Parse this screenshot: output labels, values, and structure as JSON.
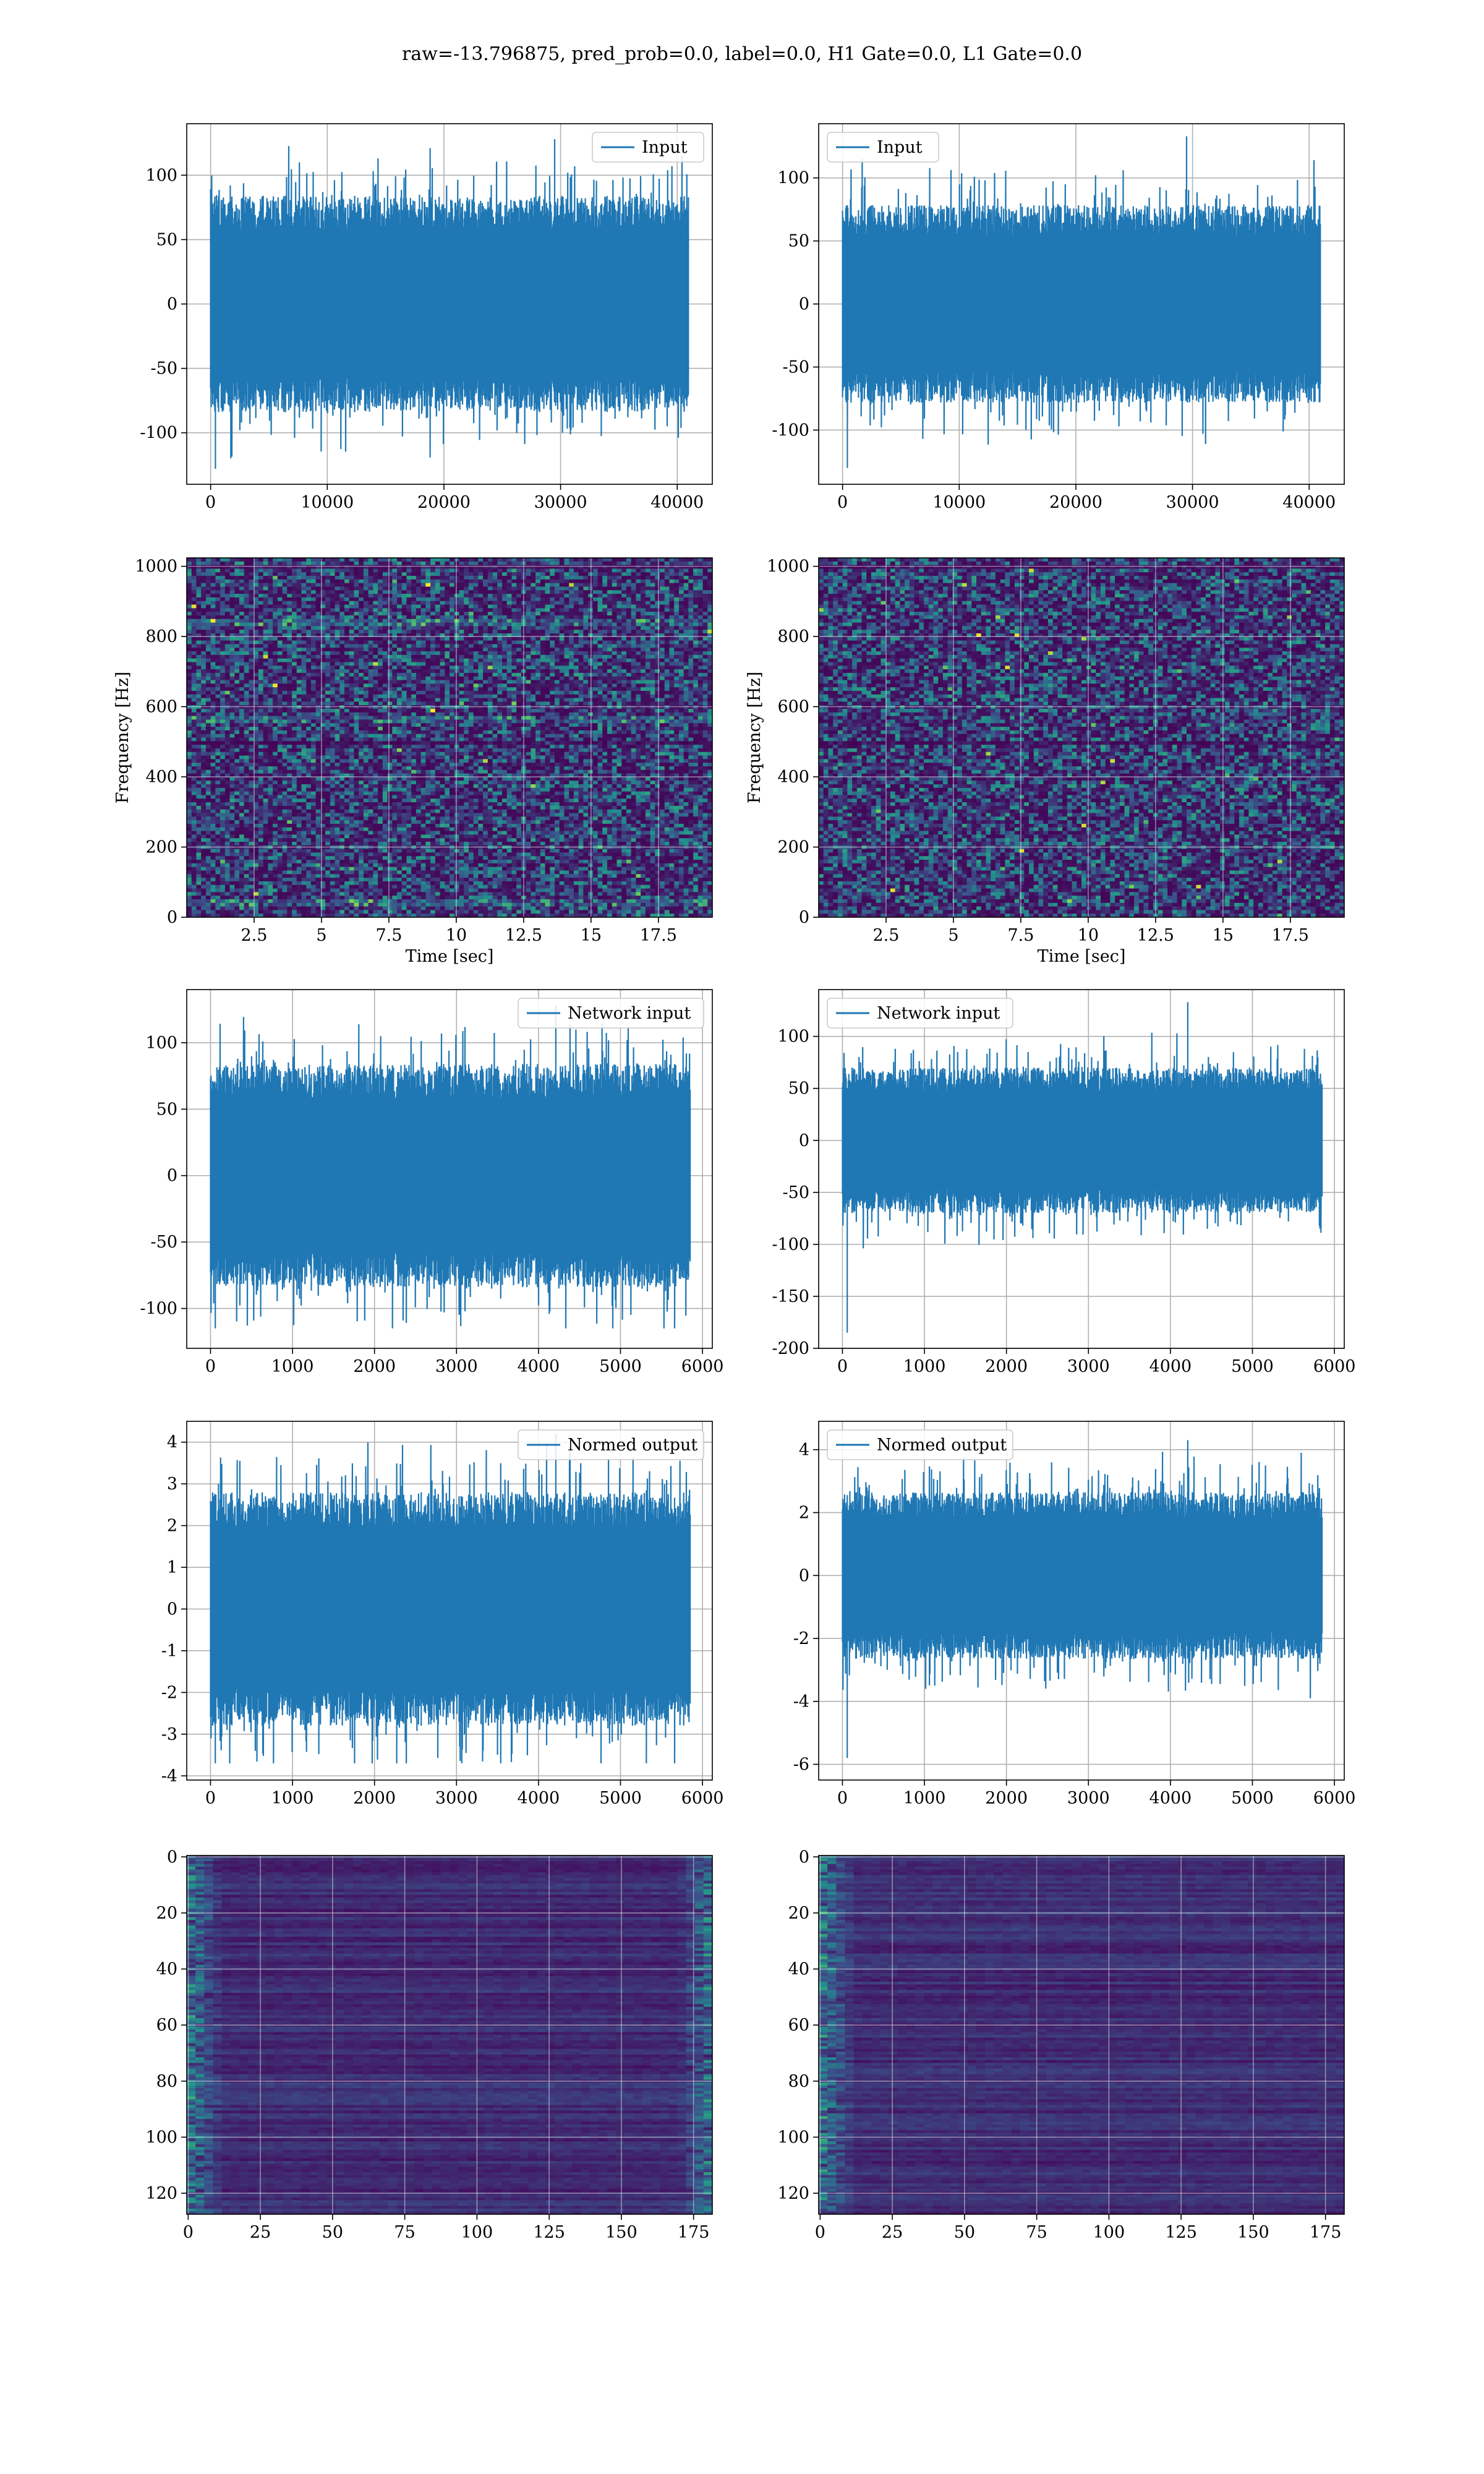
{
  "figure": {
    "title": "raw=-13.796875, pred_prob=0.0, label=0.0, H1 Gate=0.0, L1 Gate=0.0",
    "colors": {
      "line": "#1f77b4",
      "grid": "#b0b0b0"
    }
  },
  "chart_data": [
    {
      "id": "input-h1",
      "type": "line",
      "row": 0,
      "col": 0,
      "signal": "noise",
      "series": [
        {
          "name": "Input",
          "color": "#1f77b4",
          "sample_count": 40960,
          "amplitude_std": 30,
          "peak_max": 128,
          "peak_min": -128
        }
      ],
      "xlim": [
        -2048,
        43008
      ],
      "ylim": [
        -140,
        140
      ],
      "xticks": [
        0,
        10000,
        20000,
        30000,
        40000
      ],
      "yticks": [
        -100,
        -50,
        0,
        50,
        100
      ],
      "grid": true,
      "legend": "upper right"
    },
    {
      "id": "input-l1",
      "type": "line",
      "row": 0,
      "col": 1,
      "signal": "noise",
      "series": [
        {
          "name": "Input",
          "color": "#1f77b4",
          "sample_count": 40960,
          "amplitude_std": 28,
          "peak_max": 133,
          "peak_min": -130
        }
      ],
      "xlim": [
        -2048,
        43008
      ],
      "ylim": [
        -143,
        143
      ],
      "xticks": [
        0,
        10000,
        20000,
        30000,
        40000
      ],
      "yticks": [
        -100,
        -50,
        0,
        50,
        100
      ],
      "grid": true,
      "legend": "upper left"
    },
    {
      "id": "spectrogram-h1",
      "type": "heatmap",
      "row": 1,
      "col": 0,
      "colormap": "viridis",
      "xlim": [
        0,
        19.5
      ],
      "ylim": [
        0,
        1024
      ],
      "xticks": [
        2.5,
        5.0,
        7.5,
        10.0,
        12.5,
        15.0,
        17.5
      ],
      "yticks": [
        0,
        200,
        400,
        600,
        800,
        1000
      ],
      "xlabel": "Time [sec]",
      "ylabel": "Frequency [Hz]",
      "bright_lines_hz": [
        40,
        560,
        840
      ],
      "dark_lines_hz": [
        500,
        1000
      ],
      "grid": true
    },
    {
      "id": "spectrogram-l1",
      "type": "heatmap",
      "row": 1,
      "col": 1,
      "colormap": "viridis",
      "xlim": [
        0,
        19.5
      ],
      "ylim": [
        0,
        1024
      ],
      "xticks": [
        2.5,
        5.0,
        7.5,
        10.0,
        12.5,
        15.0,
        17.5
      ],
      "yticks": [
        0,
        200,
        400,
        600,
        800,
        1000
      ],
      "xlabel": "Time [sec]",
      "ylabel": "Frequency [Hz]",
      "bright_lines_hz": [],
      "dark_lines_hz": [
        500,
        1000
      ],
      "grid": true
    },
    {
      "id": "network-input-h1",
      "type": "line",
      "row": 2,
      "col": 0,
      "signal": "noise",
      "series": [
        {
          "name": "Network input",
          "color": "#1f77b4",
          "sample_count": 5850,
          "amplitude_std": 30,
          "peak_max": 128,
          "peak_min": -115
        }
      ],
      "xlim": [
        -290,
        6120
      ],
      "ylim": [
        -130,
        140
      ],
      "xticks": [
        0,
        1000,
        2000,
        3000,
        4000,
        5000,
        6000
      ],
      "yticks": [
        -100,
        -50,
        0,
        50,
        100
      ],
      "grid": true,
      "legend": "upper right"
    },
    {
      "id": "network-input-l1",
      "type": "line",
      "row": 2,
      "col": 1,
      "signal": "noise",
      "series": [
        {
          "name": "Network input",
          "color": "#1f77b4",
          "sample_count": 5850,
          "amplitude_std": 25,
          "peak_max": 133,
          "peak_min": -185
        }
      ],
      "xlim": [
        -290,
        6120
      ],
      "ylim": [
        -200,
        145
      ],
      "xticks": [
        0,
        1000,
        2000,
        3000,
        4000,
        5000,
        6000
      ],
      "yticks": [
        -200,
        -150,
        -100,
        -50,
        0,
        50,
        100
      ],
      "grid": true,
      "legend": "upper left"
    },
    {
      "id": "normed-output-h1",
      "type": "line",
      "row": 3,
      "col": 0,
      "signal": "noise",
      "series": [
        {
          "name": "Normed output",
          "color": "#1f77b4",
          "sample_count": 5850,
          "amplitude_std": 1.0,
          "peak_max": 4.2,
          "peak_min": -3.7
        }
      ],
      "xlim": [
        -290,
        6120
      ],
      "ylim": [
        -4.1,
        4.5
      ],
      "xticks": [
        0,
        1000,
        2000,
        3000,
        4000,
        5000,
        6000
      ],
      "yticks": [
        -4,
        -3,
        -2,
        -1,
        0,
        1,
        2,
        3,
        4
      ],
      "grid": true,
      "legend": "upper right"
    },
    {
      "id": "normed-output-l1",
      "type": "line",
      "row": 3,
      "col": 1,
      "signal": "noise",
      "series": [
        {
          "name": "Normed output",
          "color": "#1f77b4",
          "sample_count": 5850,
          "amplitude_std": 0.95,
          "peak_max": 4.3,
          "peak_min": -5.8
        }
      ],
      "xlim": [
        -290,
        6120
      ],
      "ylim": [
        -6.5,
        4.9
      ],
      "xticks": [
        0,
        1000,
        2000,
        3000,
        4000,
        5000,
        6000
      ],
      "yticks": [
        -6,
        -4,
        -2,
        0,
        2,
        4
      ],
      "grid": true,
      "legend": "upper left"
    },
    {
      "id": "feature-map-h1",
      "type": "heatmap",
      "row": 4,
      "col": 0,
      "colormap": "viridis",
      "rows": 128,
      "cols": 182,
      "xlim": [
        -0.5,
        181.5
      ],
      "ylim": [
        127.5,
        -0.5
      ],
      "xticks": [
        0,
        25,
        50,
        75,
        100,
        125,
        150,
        175
      ],
      "yticks": [
        0,
        20,
        40,
        60,
        80,
        100,
        120
      ],
      "bright_edges": [
        "left",
        "right"
      ],
      "grid": true
    },
    {
      "id": "feature-map-l1",
      "type": "heatmap",
      "row": 4,
      "col": 1,
      "colormap": "viridis",
      "rows": 128,
      "cols": 182,
      "xlim": [
        -0.5,
        181.5
      ],
      "ylim": [
        127.5,
        -0.5
      ],
      "xticks": [
        0,
        25,
        50,
        75,
        100,
        125,
        150,
        175
      ],
      "yticks": [
        0,
        20,
        40,
        60,
        80,
        100,
        120
      ],
      "bright_edges": [
        "left"
      ],
      "grid": true
    }
  ]
}
